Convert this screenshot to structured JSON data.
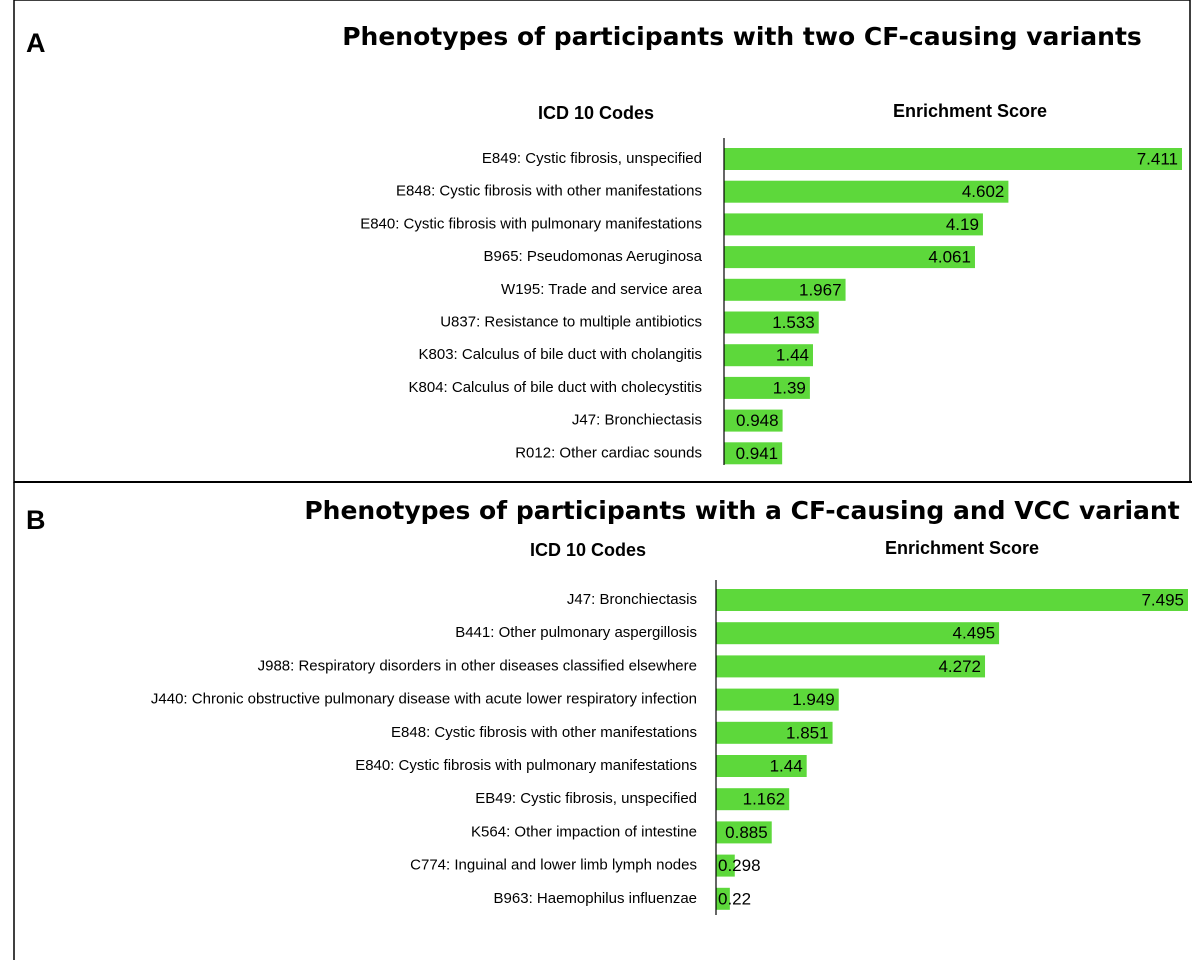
{
  "chart_data": [
    {
      "type": "bar",
      "panel": "A",
      "title": "Phenotypes of participants with two CF-causing variants",
      "y_label": "ICD 10 Codes",
      "x_label": "Enrichment Score",
      "color": "#5dd83b",
      "categories": [
        "E849: Cystic fibrosis, unspecified",
        "E848: Cystic fibrosis with other manifestations",
        "E840: Cystic fibrosis with pulmonary manifestations",
        "B965: Pseudomonas Aeruginosa",
        "W195: Trade and service area",
        "U837: Resistance to multiple antibiotics",
        "K803: Calculus of bile duct with cholangitis",
        "K804: Calculus of bile duct with cholecystitis",
        "J47: Bronchiectasis",
        "R012: Other cardiac sounds"
      ],
      "values": [
        7.411,
        4.602,
        4.19,
        4.061,
        1.967,
        1.533,
        1.44,
        1.39,
        0.948,
        0.941
      ]
    },
    {
      "type": "bar",
      "panel": "B",
      "title": "Phenotypes of participants with a CF-causing and VCC variant",
      "y_label": "ICD 10 Codes",
      "x_label": "Enrichment Score",
      "color": "#5dd83b",
      "categories": [
        "J47: Bronchiectasis",
        "B441: Other pulmonary aspergillosis",
        "J988: Respiratory disorders in other diseases classified elsewhere",
        "J440: Chronic obstructive pulmonary disease with acute lower respiratory infection",
        "E848: Cystic fibrosis with other manifestations",
        "E840: Cystic fibrosis with pulmonary manifestations",
        "EB49: Cystic fibrosis, unspecified",
        "K564: Other impaction of intestine",
        "C774: Inguinal and lower limb lymph nodes",
        "B963: Haemophilus influenzae"
      ],
      "values": [
        7.495,
        4.495,
        4.272,
        1.949,
        1.851,
        1.44,
        1.162,
        0.885,
        0.298,
        0.22
      ]
    }
  ]
}
